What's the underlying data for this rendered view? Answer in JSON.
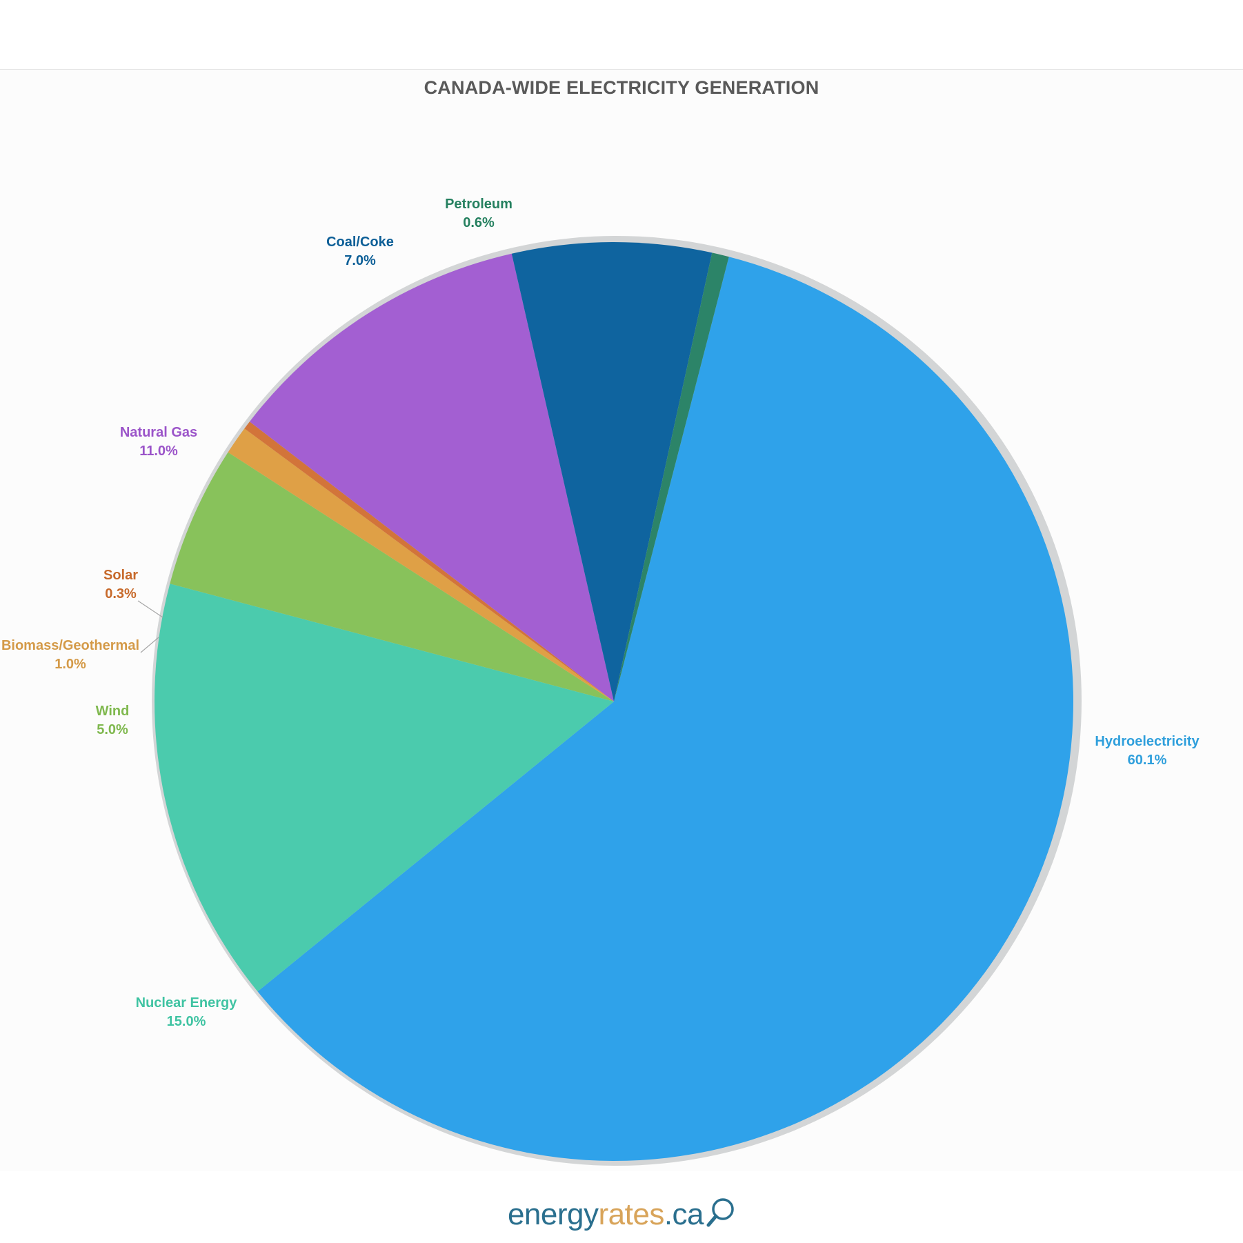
{
  "chart_data": {
    "type": "pie",
    "title": "CANADA-WIDE ELECTRICITY GENERATION",
    "start_angle_deg": 14.5,
    "direction": "clockwise",
    "slices": [
      {
        "label": "Hydroelectricity",
        "value": 60.1,
        "display": "60.1%",
        "color": "#2fa2ea"
      },
      {
        "label": "Nuclear Energy",
        "value": 15.0,
        "display": "15.0%",
        "color": "#4bcbad"
      },
      {
        "label": "Wind",
        "value": 5.0,
        "display": "5.0%",
        "color": "#88c25b"
      },
      {
        "label": "Biomass/Geothermal",
        "value": 1.0,
        "display": "1.0%",
        "color": "#dfa046"
      },
      {
        "label": "Solar",
        "value": 0.3,
        "display": "0.3%",
        "color": "#d2743a"
      },
      {
        "label": "Natural Gas",
        "value": 11.0,
        "display": "11.0%",
        "color": "#a35fd2"
      },
      {
        "label": "Coal/Coke",
        "value": 7.0,
        "display": "7.0%",
        "color": "#0f649f"
      },
      {
        "label": "Petroleum",
        "value": 0.6,
        "display": "0.6%",
        "color": "#2c8468"
      }
    ]
  },
  "label_colors": {
    "Hydroelectricity": "#2f9fdc",
    "Nuclear Energy": "#3fc3a2",
    "Wind": "#7fb84e",
    "Biomass/Geothermal": "#d49a48",
    "Solar": "#c7692a",
    "Natural Gas": "#9b54c9",
    "Coal/Coke": "#0d5f97",
    "Petroleum": "#25805f"
  },
  "footer": {
    "brand_part_1": "energy",
    "brand_part_2": "rates",
    "brand_part_3": ".ca",
    "brand_icon": "magnifier-icon"
  }
}
